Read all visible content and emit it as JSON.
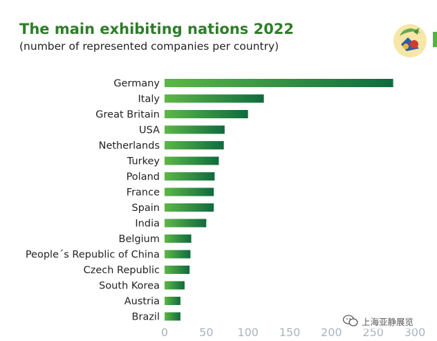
{
  "title": "The main exhibiting nations 2022",
  "subtitle": "(number of represented companies per country)",
  "watermark": "上海亚静展览",
  "logo_icon": "fair-mascot-logo-icon",
  "colors": {
    "title": "#2f7d2a",
    "bar_start": "#5cb747",
    "bar_end": "#0f6b3e",
    "axis_text": "#a9b4be"
  },
  "chart_data": {
    "type": "bar",
    "orientation": "horizontal",
    "title": "The main exhibiting nations 2022",
    "subtitle": "(number of represented companies per country)",
    "categories": [
      "Germany",
      "Italy",
      "Great Britain",
      "USA",
      "Netherlands",
      "Turkey",
      "Poland",
      "France",
      "Spain",
      "India",
      "Belgium",
      "People´s Republic of China",
      "Czech Republic",
      "South Korea",
      "Austria",
      "Brazil"
    ],
    "values": [
      274,
      119,
      100,
      72,
      71,
      65,
      60,
      59,
      59,
      50,
      32,
      31,
      30,
      24,
      19,
      19
    ],
    "ticks": [
      0,
      50,
      100,
      150,
      200,
      250,
      300
    ],
    "tick_labels": [
      "0",
      "50",
      "100",
      "150",
      "200",
      "250",
      "300"
    ],
    "xlim": [
      0,
      300
    ],
    "xlabel": "",
    "ylabel": "",
    "grid": false,
    "legend": "none"
  }
}
